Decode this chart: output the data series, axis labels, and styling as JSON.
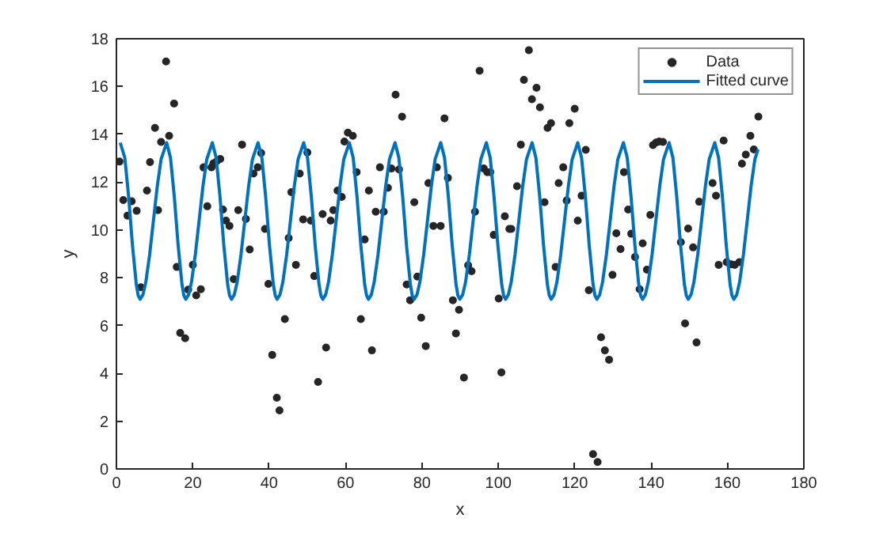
{
  "chart_data": {
    "type": "scatter",
    "xlabel": "x",
    "ylabel": "y",
    "xlim": [
      0,
      180
    ],
    "ylim": [
      0,
      18
    ],
    "xticks": [
      0,
      20,
      40,
      60,
      80,
      100,
      120,
      140,
      160,
      180
    ],
    "yticks": [
      0,
      2,
      4,
      6,
      8,
      10,
      12,
      14,
      16,
      18
    ],
    "grid": false,
    "legend": "top right",
    "series": [
      {
        "name": "Data",
        "marker": "circle",
        "color": "#262626",
        "x": [
          0.8,
          1.8,
          2.9,
          4.0,
          5.3,
          6.4,
          8.0,
          8.8,
          10.1,
          10.9,
          11.7,
          13.0,
          13.8,
          15.1,
          15.8,
          16.7,
          18.0,
          18.8,
          20.0,
          20.9,
          22.1,
          22.8,
          23.8,
          24.9,
          25.4,
          26.3,
          27.2,
          27.9,
          28.7,
          29.6,
          30.7,
          31.9,
          32.9,
          33.9,
          34.9,
          35.9,
          37.0,
          37.9,
          38.9,
          39.8,
          40.8,
          42.0,
          42.7,
          44.1,
          45.1,
          45.8,
          47.0,
          48.0,
          48.9,
          50.0,
          50.9,
          51.8,
          52.8,
          54.0,
          54.9,
          56.1,
          56.8,
          57.9,
          59.0,
          59.7,
          60.6,
          61.9,
          62.9,
          64.0,
          65.0,
          66.1,
          66.9,
          67.9,
          69.0,
          70.0,
          71.1,
          72.0,
          73.1,
          74.0,
          74.8,
          76.0,
          76.9,
          78.0,
          78.8,
          79.8,
          81.0,
          81.7,
          83.0,
          83.9,
          84.9,
          85.9,
          86.8,
          88.1,
          88.9,
          89.7,
          91.0,
          92.1,
          93.0,
          93.9,
          95.1,
          96.2,
          97.1,
          97.9,
          98.8,
          100.1,
          100.8,
          101.7,
          102.9,
          103.4,
          104.9,
          105.9,
          106.7,
          108.0,
          108.8,
          110.0,
          110.9,
          112.1,
          112.9,
          113.8,
          115.0,
          115.8,
          117.0,
          117.9,
          118.6,
          120.0,
          120.8,
          121.8,
          122.9,
          123.7,
          124.8,
          126.0,
          126.9,
          127.9,
          129.0,
          129.9,
          130.9,
          132.0,
          132.9,
          134.0,
          134.8,
          135.8,
          137.0,
          137.8,
          138.9,
          139.8,
          140.5,
          141.3,
          142.1,
          143.1,
          147.8,
          148.9,
          149.7,
          151.0,
          151.9,
          152.6,
          156.1,
          157.0,
          157.7,
          159.0,
          159.8,
          161.0,
          161.9,
          163.1,
          163.8,
          164.8,
          166.0,
          166.9,
          168.1
        ],
        "values": [
          12.86,
          11.25,
          10.6,
          11.2,
          10.8,
          7.6,
          11.65,
          12.84,
          14.27,
          10.83,
          13.68,
          17.05,
          13.94,
          15.29,
          8.45,
          5.69,
          5.47,
          7.5,
          8.54,
          7.26,
          7.52,
          12.62,
          10.99,
          12.62,
          12.79,
          12.88,
          12.97,
          10.85,
          10.39,
          10.17,
          7.94,
          10.83,
          13.57,
          10.46,
          9.18,
          12.36,
          12.62,
          13.22,
          10.04,
          7.74,
          4.77,
          2.98,
          2.45,
          6.27,
          9.66,
          11.58,
          8.54,
          12.36,
          10.44,
          13.24,
          10.39,
          8.07,
          3.64,
          10.66,
          5.08,
          10.39,
          10.83,
          11.65,
          11.38,
          13.7,
          14.07,
          13.94,
          12.42,
          6.27,
          9.6,
          11.65,
          4.96,
          10.76,
          12.62,
          10.76,
          11.76,
          12.57,
          15.66,
          12.53,
          14.74,
          7.72,
          7.06,
          11.16,
          8.05,
          6.33,
          5.14,
          11.96,
          10.17,
          12.62,
          10.17,
          14.67,
          12.18,
          7.06,
          5.67,
          6.66,
          3.82,
          8.52,
          8.27,
          10.76,
          16.66,
          12.57,
          12.42,
          12.42,
          9.79,
          7.13,
          4.04,
          10.57,
          10.04,
          10.04,
          11.83,
          13.57,
          16.28,
          17.52,
          15.47,
          15.95,
          15.13,
          11.16,
          14.27,
          14.47,
          8.45,
          11.96,
          12.62,
          11.23,
          14.47,
          15.07,
          10.39,
          11.43,
          13.35,
          7.48,
          0.62,
          0.29,
          5.51,
          4.96,
          4.57,
          8.12,
          9.86,
          9.2,
          12.42,
          10.85,
          9.84,
          8.87,
          7.52,
          9.44,
          8.34,
          10.63,
          13.55,
          13.66,
          13.7,
          13.68,
          9.49,
          6.09,
          10.06,
          9.27,
          5.29,
          11.18,
          11.96,
          11.43,
          8.54,
          13.74,
          8.65,
          8.56,
          8.54,
          8.65,
          12.77,
          13.15,
          13.94,
          13.37,
          14.74
        ]
      },
      {
        "name": "Fitted curve",
        "type": "line",
        "marker": "none",
        "line_style": "solid",
        "color": "#0072bd",
        "x": [
          1,
          2.2,
          3.2,
          4.2,
          5.2,
          5.7,
          6.2,
          6.95,
          7.7,
          8.7,
          9.7,
          10.7,
          11.7,
          13.16,
          14.16,
          15.16,
          16.16,
          17.16,
          17.66,
          18.16,
          18.91,
          19.66,
          20.66,
          21.66,
          22.66,
          23.66,
          25.12,
          26.12,
          27.12,
          28.12,
          29.12,
          29.62,
          30.12,
          30.87,
          31.62,
          32.62,
          33.62,
          34.62,
          35.62,
          37.08,
          38.08,
          39.08,
          40.08,
          41.08,
          41.58,
          42.08,
          42.83,
          43.58,
          44.58,
          45.58,
          46.58,
          47.58,
          49.04,
          50.04,
          51.04,
          52.04,
          53.04,
          53.54,
          54.04,
          54.79,
          55.54,
          56.54,
          57.54,
          58.54,
          59.54,
          61,
          62,
          63,
          64,
          65,
          65.5,
          66,
          66.75,
          67.5,
          68.5,
          69.5,
          70.5,
          71.5,
          72.96,
          73.96,
          74.96,
          75.96,
          76.96,
          77.46,
          77.96,
          78.71,
          79.46,
          80.46,
          81.46,
          82.46,
          83.46,
          84.92,
          85.92,
          86.92,
          87.92,
          88.92,
          89.42,
          89.92,
          90.67,
          91.42,
          92.42,
          93.42,
          94.42,
          95.42,
          96.88,
          97.88,
          98.88,
          99.88,
          100.88,
          101.38,
          101.88,
          102.63,
          103.38,
          104.38,
          105.38,
          106.38,
          107.38,
          108.84,
          109.84,
          110.84,
          111.84,
          112.84,
          113.34,
          113.84,
          114.59,
          115.34,
          116.34,
          117.34,
          118.34,
          119.34,
          120.8,
          121.8,
          122.8,
          123.8,
          124.8,
          125.3,
          125.8,
          126.55,
          127.3,
          128.3,
          129.3,
          130.3,
          131.3,
          132.76,
          133.76,
          134.76,
          135.76,
          136.76,
          137.26,
          137.76,
          138.51,
          139.26,
          140.26,
          141.26,
          142.26,
          143.26,
          144.72,
          145.72,
          146.72,
          147.72,
          148.72,
          149.22,
          149.72,
          150.47,
          151.22,
          152.22,
          153.22,
          154.22,
          155.22,
          156.68,
          157.68,
          158.68,
          159.68,
          160.68,
          161.18,
          161.68,
          162.43,
          163.18,
          164.18,
          165.18,
          166.18,
          167.18,
          168
        ],
        "values": [
          13.65,
          13.02,
          11.39,
          9.36,
          7.73,
          7.26,
          7.1,
          7.29,
          7.82,
          8.97,
          10.4,
          11.83,
          12.96,
          13.65,
          13.02,
          11.39,
          9.36,
          7.73,
          7.26,
          7.1,
          7.29,
          7.82,
          8.97,
          10.4,
          11.83,
          12.96,
          13.65,
          13.02,
          11.39,
          9.36,
          7.73,
          7.26,
          7.1,
          7.29,
          7.82,
          8.97,
          10.4,
          11.83,
          12.96,
          13.65,
          13.02,
          11.39,
          9.36,
          7.73,
          7.26,
          7.1,
          7.29,
          7.82,
          8.97,
          10.4,
          11.83,
          12.96,
          13.65,
          13.02,
          11.39,
          9.36,
          7.73,
          7.26,
          7.1,
          7.29,
          7.82,
          8.97,
          10.4,
          11.83,
          12.96,
          13.65,
          13.02,
          11.39,
          9.36,
          7.73,
          7.26,
          7.1,
          7.29,
          7.82,
          8.97,
          10.4,
          11.83,
          12.96,
          13.65,
          13.02,
          11.39,
          9.36,
          7.73,
          7.26,
          7.1,
          7.29,
          7.82,
          8.97,
          10.4,
          11.83,
          12.96,
          13.65,
          13.02,
          11.39,
          9.36,
          7.73,
          7.26,
          7.1,
          7.29,
          7.82,
          8.97,
          10.4,
          11.83,
          12.96,
          13.65,
          13.02,
          11.39,
          9.36,
          7.73,
          7.26,
          7.1,
          7.29,
          7.82,
          8.97,
          10.4,
          11.83,
          12.96,
          13.65,
          13.02,
          11.39,
          9.36,
          7.73,
          7.26,
          7.1,
          7.29,
          7.82,
          8.97,
          10.4,
          11.83,
          12.96,
          13.65,
          13.02,
          11.39,
          9.36,
          7.73,
          7.26,
          7.1,
          7.29,
          7.82,
          8.97,
          10.4,
          11.83,
          12.96,
          13.65,
          13.02,
          11.39,
          9.36,
          7.73,
          7.26,
          7.1,
          7.29,
          7.82,
          8.97,
          10.4,
          11.83,
          12.96,
          13.65,
          13.02,
          11.39,
          9.36,
          7.73,
          7.26,
          7.1,
          7.29,
          7.82,
          8.97,
          10.4,
          11.83,
          12.96,
          13.65,
          13.02,
          11.39,
          9.36,
          7.73,
          7.26,
          7.1,
          7.29,
          7.82,
          8.97,
          10.4,
          11.83,
          12.96,
          13.37
        ]
      }
    ]
  }
}
